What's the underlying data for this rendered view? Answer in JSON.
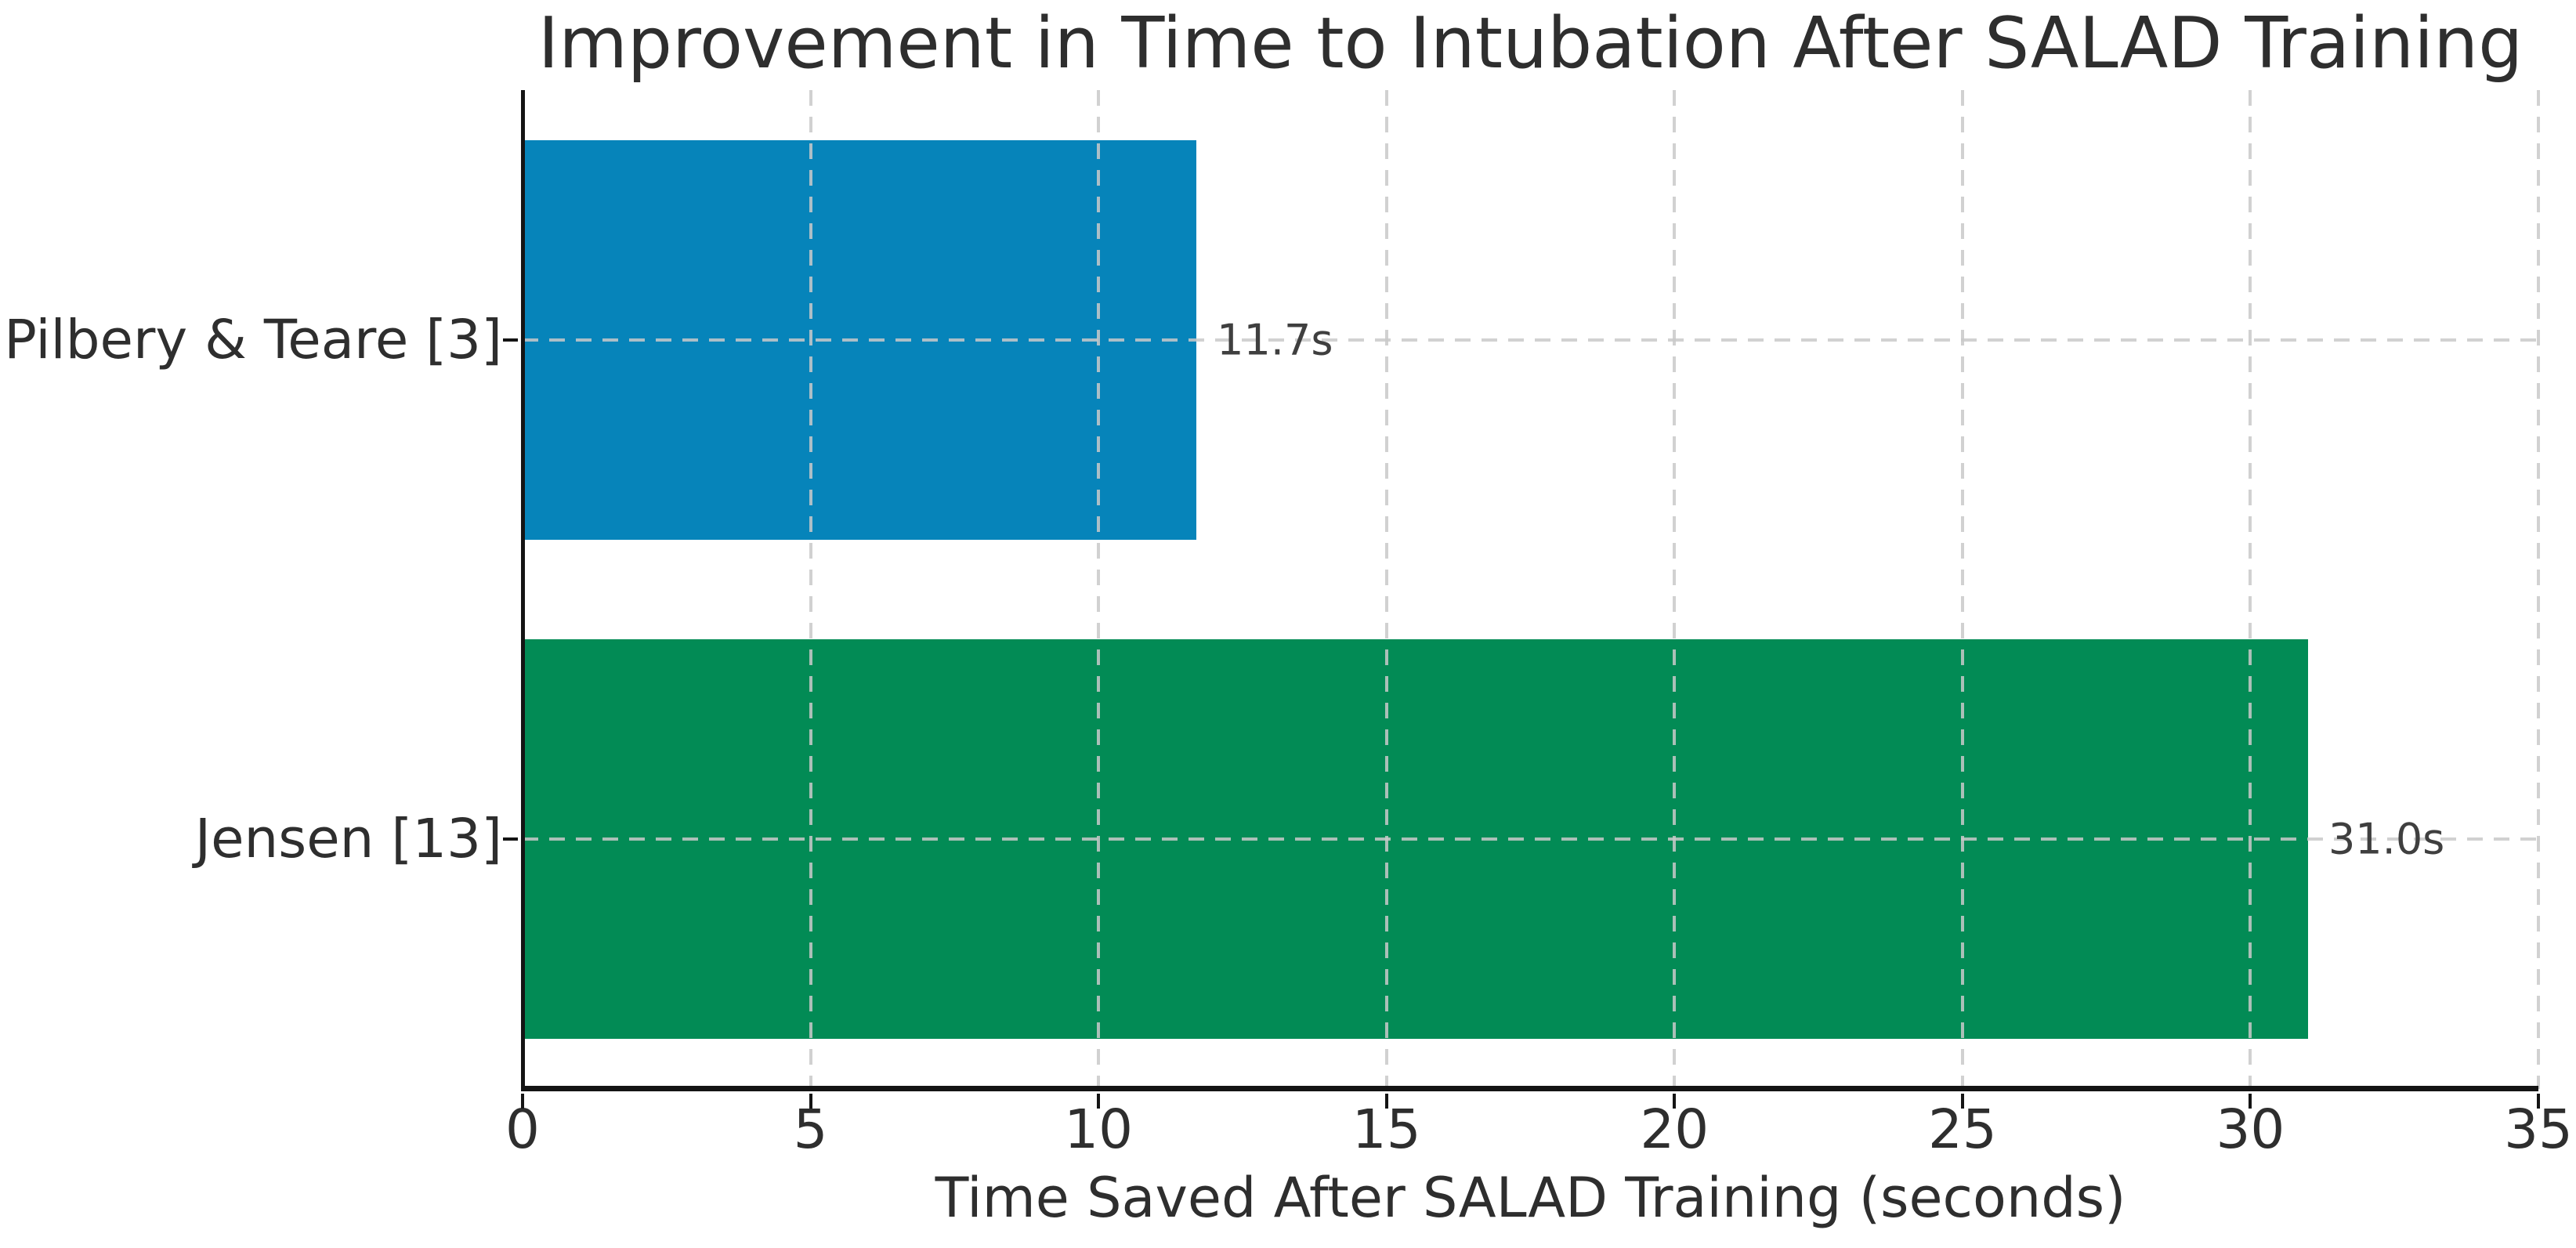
{
  "chart_data": {
    "type": "bar",
    "orientation": "horizontal",
    "title": "Improvement in Time to Intubation After SALAD Training",
    "xlabel": "Time Saved After SALAD Training (seconds)",
    "ylabel": "",
    "categories": [
      "Pilbery & Teare [3]",
      "Jensen [13]"
    ],
    "values": [
      11.7,
      31.0
    ],
    "value_labels": [
      "11.7s",
      "31.0s"
    ],
    "bar_colors": [
      "#0684ba",
      "#028b55"
    ],
    "xlim": [
      0,
      35
    ],
    "xticks": [
      0,
      5,
      10,
      15,
      20,
      25,
      30,
      35
    ],
    "grid": "dashed, both axes, drawn above bars",
    "legend": "none"
  },
  "colors": {
    "text": "#2e2e2e",
    "value_label_text": "#3f3f3f",
    "grid": "#c9c9c9",
    "spine": "#141414",
    "background": "#ffffff"
  }
}
